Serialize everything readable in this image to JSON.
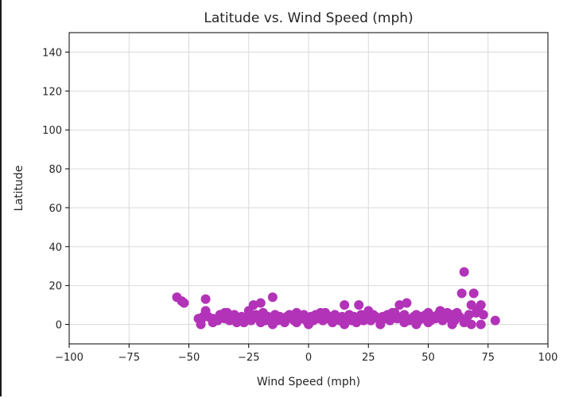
{
  "chart_data": {
    "type": "scatter",
    "title": "Latitude vs. Wind Speed (mph)",
    "xlabel": "Wind Speed (mph)",
    "ylabel": "Latitude",
    "xlim": [
      -100,
      100
    ],
    "ylim": [
      -10,
      150
    ],
    "xticks": [
      -100,
      -75,
      -50,
      -25,
      0,
      25,
      50,
      75,
      100
    ],
    "yticks": [
      0,
      20,
      40,
      60,
      80,
      100,
      120,
      140
    ],
    "xtick_labels": [
      "−100",
      "−75",
      "−50",
      "−25",
      "0",
      "25",
      "50",
      "75",
      "100"
    ],
    "ytick_labels": [
      "0",
      "20",
      "40",
      "60",
      "80",
      "100",
      "120",
      "140"
    ],
    "grid": true,
    "marker_color": "#b233b8",
    "series": [
      {
        "x": [
          -55,
          -53,
          -52,
          -46,
          -45,
          -44,
          -43,
          -43,
          -42,
          -40,
          -38,
          -37,
          -36,
          -35,
          -34,
          -33,
          -32,
          -31,
          -30,
          -29,
          -28,
          -27,
          -26,
          -25,
          -24,
          -23,
          -22,
          -21,
          -20,
          -19,
          -18,
          -17,
          -16,
          -15,
          -14,
          -13,
          -12,
          -11,
          -10,
          -9,
          -8,
          -7,
          -6,
          -5,
          -4,
          -3,
          -2,
          -1,
          0,
          1,
          2,
          3,
          4,
          5,
          6,
          7,
          8,
          9,
          10,
          11,
          12,
          13,
          14,
          15,
          16,
          17,
          18,
          19,
          20,
          21,
          22,
          23,
          24,
          25,
          26,
          27,
          28,
          29,
          30,
          31,
          32,
          33,
          34,
          35,
          36,
          37,
          38,
          39,
          40,
          41,
          42,
          43,
          44,
          45,
          46,
          47,
          48,
          49,
          50,
          51,
          52,
          53,
          54,
          55,
          56,
          57,
          58,
          59,
          60,
          61,
          62,
          63,
          64,
          65,
          66,
          67,
          68,
          69,
          70,
          71,
          72,
          73,
          78,
          -40,
          -30,
          -20,
          -15,
          -10,
          0,
          10,
          15,
          20,
          30,
          40,
          45,
          50,
          60,
          65,
          68,
          -35,
          -25,
          -5,
          5,
          25,
          35,
          55,
          70,
          -45,
          72
        ],
        "y": [
          14,
          12,
          11,
          3,
          2,
          4,
          13,
          7,
          4,
          3,
          2,
          5,
          4,
          3,
          6,
          2,
          4,
          5,
          3,
          2,
          4,
          1,
          3,
          4,
          2,
          10,
          5,
          3,
          11,
          6,
          2,
          4,
          3,
          14,
          5,
          2,
          4,
          3,
          2,
          4,
          5,
          3,
          2,
          1,
          4,
          3,
          5,
          2,
          3,
          4,
          2,
          5,
          3,
          4,
          2,
          6,
          3,
          4,
          2,
          5,
          3,
          2,
          4,
          10,
          3,
          5,
          2,
          4,
          3,
          10,
          5,
          2,
          4,
          3,
          2,
          5,
          4,
          3,
          2,
          4,
          3,
          5,
          2,
          4,
          6,
          3,
          10,
          4,
          5,
          11,
          2,
          3,
          4,
          5,
          2,
          4,
          3,
          5,
          6,
          2,
          4,
          3,
          5,
          7,
          2,
          4,
          6,
          3,
          5,
          2,
          6,
          4,
          16,
          27,
          3,
          5,
          10,
          16,
          6,
          8,
          10,
          5,
          2,
          1,
          1,
          1,
          0,
          1,
          0,
          1,
          0,
          1,
          0,
          1,
          0,
          1,
          0,
          1,
          0,
          6,
          7,
          6,
          6,
          7,
          6,
          7,
          6,
          0,
          0
        ]
      }
    ]
  }
}
